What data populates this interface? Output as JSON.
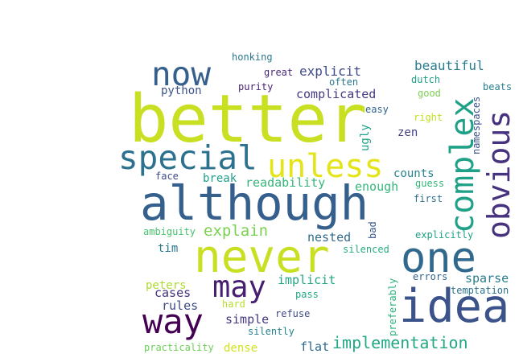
{
  "word_cloud": {
    "words": [
      {
        "text": "better",
        "color": "#c8df22"
      },
      {
        "text": "although",
        "color": "#355f8d"
      },
      {
        "text": "never",
        "color": "#c8df22"
      },
      {
        "text": "idea",
        "color": "#3b528b"
      },
      {
        "text": "one",
        "color": "#31688e"
      },
      {
        "text": "complex",
        "color": "#1fa187"
      },
      {
        "text": "obvious",
        "color": "#46327e"
      },
      {
        "text": "unless",
        "color": "#e5e419"
      },
      {
        "text": "special",
        "color": "#2c728e"
      },
      {
        "text": "now",
        "color": "#355f8d"
      },
      {
        "text": "way",
        "color": "#440154"
      },
      {
        "text": "may",
        "color": "#481f70"
      },
      {
        "text": "implementation",
        "color": "#22a884"
      },
      {
        "text": "explain",
        "color": "#7ad151"
      },
      {
        "text": "beautiful",
        "color": "#287c8e"
      },
      {
        "text": "explicit",
        "color": "#3e4989"
      },
      {
        "text": "complicated",
        "color": "#443983"
      },
      {
        "text": "readability",
        "color": "#35b779"
      },
      {
        "text": "enough",
        "color": "#35b779"
      },
      {
        "text": "nested",
        "color": "#31688e"
      },
      {
        "text": "implicit",
        "color": "#22a884"
      },
      {
        "text": "sparse",
        "color": "#287c8e"
      },
      {
        "text": "cases",
        "color": "#46327e"
      },
      {
        "text": "rules",
        "color": "#3e4989"
      },
      {
        "text": "simple",
        "color": "#443983"
      },
      {
        "text": "peters",
        "color": "#addc30"
      },
      {
        "text": "dense",
        "color": "#d2e21b"
      },
      {
        "text": "flat",
        "color": "#31688e"
      },
      {
        "text": "counts",
        "color": "#26828e"
      },
      {
        "text": "python",
        "color": "#3b528b"
      },
      {
        "text": "break",
        "color": "#1f9e89"
      },
      {
        "text": "tim",
        "color": "#2a788e"
      },
      {
        "text": "zen",
        "color": "#433e85"
      },
      {
        "text": "ugly",
        "color": "#1fa187"
      },
      {
        "text": "honking",
        "color": "#2a788e"
      },
      {
        "text": "great",
        "color": "#482878"
      },
      {
        "text": "purity",
        "color": "#482173"
      },
      {
        "text": "often",
        "color": "#2a788e"
      },
      {
        "text": "dutch",
        "color": "#1fa187"
      },
      {
        "text": "good",
        "color": "#7ad151"
      },
      {
        "text": "beats",
        "color": "#277f8e"
      },
      {
        "text": "right",
        "color": "#c2df23"
      },
      {
        "text": "easy",
        "color": "#33638d"
      },
      {
        "text": "namespaces",
        "color": "#3b528b"
      },
      {
        "text": "face",
        "color": "#3e4989"
      },
      {
        "text": "guess",
        "color": "#35b779"
      },
      {
        "text": "first",
        "color": "#2e6e8e"
      },
      {
        "text": "ambiguity",
        "color": "#4ac16d"
      },
      {
        "text": "bad",
        "color": "#38598c"
      },
      {
        "text": "silenced",
        "color": "#27ad81"
      },
      {
        "text": "explicitly",
        "color": "#1fa187"
      },
      {
        "text": "errors",
        "color": "#33638d"
      },
      {
        "text": "temptation",
        "color": "#2c728e"
      },
      {
        "text": "preferably",
        "color": "#2db27d"
      },
      {
        "text": "pass",
        "color": "#22a884"
      },
      {
        "text": "refuse",
        "color": "#3e4989"
      },
      {
        "text": "hard",
        "color": "#b5de2b"
      },
      {
        "text": "silently",
        "color": "#26828e"
      },
      {
        "text": "practicality",
        "color": "#6ece58"
      }
    ]
  }
}
